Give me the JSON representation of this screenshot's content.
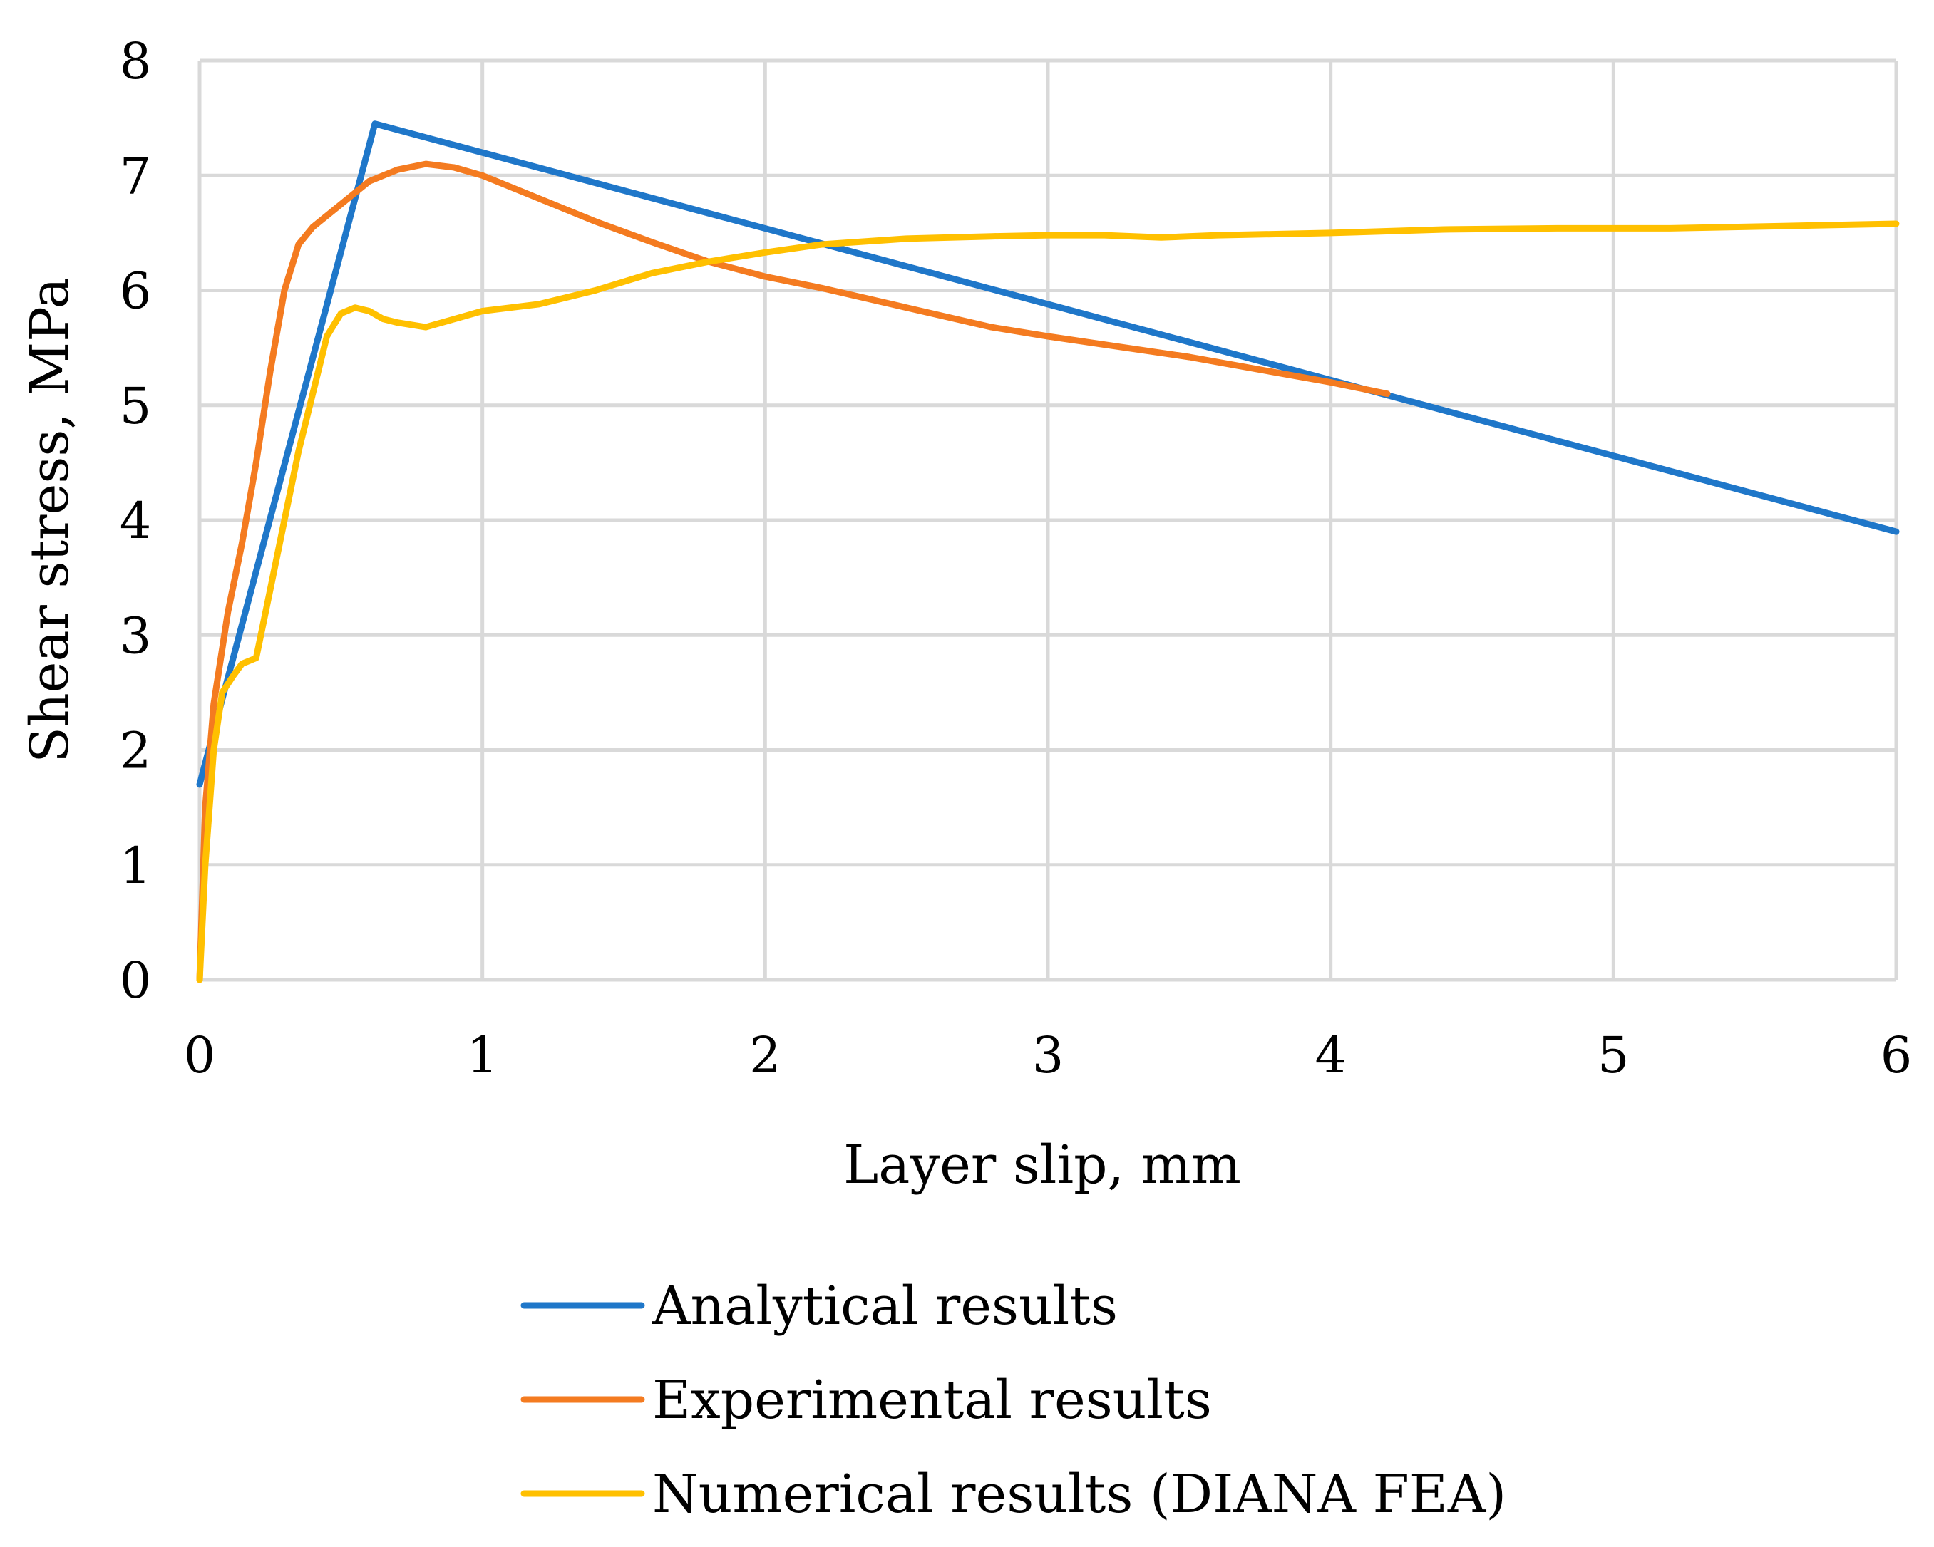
{
  "chart_data": {
    "type": "line",
    "title": "",
    "xlabel": "Layer slip, mm",
    "ylabel": "Shear stress, MPa",
    "xlim": [
      0,
      6
    ],
    "ylim": [
      0,
      8
    ],
    "xticks": [
      "0",
      "1",
      "2",
      "3",
      "4",
      "5",
      "6"
    ],
    "yticks": [
      "0",
      "1",
      "2",
      "3",
      "4",
      "5",
      "6",
      "7",
      "8"
    ],
    "grid": true,
    "legend_position": "bottom",
    "series": [
      {
        "name": "Analytical results",
        "color": "#1f77c9",
        "x": [
          0,
          0.62,
          6.0
        ],
        "y": [
          1.7,
          7.45,
          3.9
        ]
      },
      {
        "name": "Experimental results",
        "color": "#f47b20",
        "x": [
          0,
          0.02,
          0.05,
          0.1,
          0.15,
          0.2,
          0.25,
          0.3,
          0.35,
          0.4,
          0.5,
          0.6,
          0.7,
          0.8,
          0.9,
          1.0,
          1.2,
          1.4,
          1.6,
          1.8,
          2.0,
          2.2,
          2.5,
          2.8,
          3.0,
          3.5,
          4.0,
          4.2
        ],
        "y": [
          0,
          1.5,
          2.4,
          3.2,
          3.8,
          4.5,
          5.3,
          6.0,
          6.4,
          6.55,
          6.75,
          6.95,
          7.05,
          7.1,
          7.07,
          7.0,
          6.8,
          6.6,
          6.42,
          6.25,
          6.12,
          6.02,
          5.85,
          5.68,
          5.6,
          5.42,
          5.2,
          5.1
        ]
      },
      {
        "name": "Numerical results (DIANA FEA)",
        "color": "#ffc000",
        "x": [
          0,
          0.02,
          0.05,
          0.08,
          0.12,
          0.15,
          0.2,
          0.25,
          0.3,
          0.35,
          0.4,
          0.45,
          0.5,
          0.55,
          0.6,
          0.65,
          0.7,
          0.8,
          0.9,
          1.0,
          1.1,
          1.2,
          1.4,
          1.6,
          1.8,
          2.0,
          2.2,
          2.5,
          2.8,
          3.0,
          3.2,
          3.4,
          3.6,
          4.0,
          4.4,
          4.8,
          5.0,
          5.2,
          5.6,
          6.0
        ],
        "y": [
          0,
          1.0,
          2.0,
          2.5,
          2.65,
          2.75,
          2.8,
          3.4,
          4.0,
          4.6,
          5.1,
          5.6,
          5.8,
          5.85,
          5.82,
          5.75,
          5.72,
          5.68,
          5.75,
          5.82,
          5.85,
          5.88,
          6.0,
          6.15,
          6.25,
          6.33,
          6.4,
          6.45,
          6.47,
          6.48,
          6.48,
          6.46,
          6.48,
          6.5,
          6.53,
          6.54,
          6.54,
          6.54,
          6.56,
          6.58
        ]
      }
    ]
  }
}
